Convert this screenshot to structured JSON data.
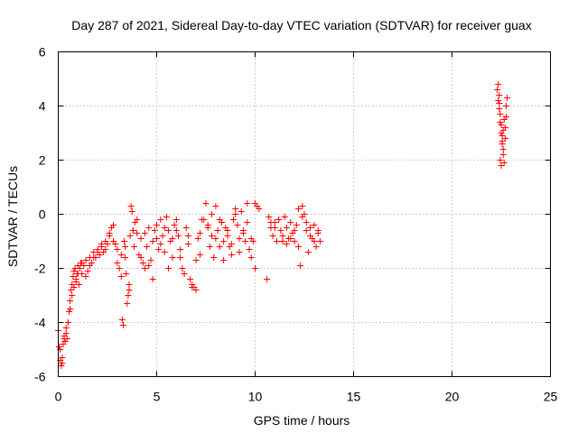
{
  "chart_data": {
    "type": "scatter",
    "title": "Day 287 of 2021, Sidereal Day-to-day VTEC variation (SDTVAR) for receiver guax",
    "xlabel": "GPS time / hours",
    "ylabel": "SDTVAR / TECUs",
    "xlim": [
      0,
      25
    ],
    "ylim": [
      -6,
      6
    ],
    "xticks": [
      0,
      5,
      10,
      15,
      20,
      25
    ],
    "yticks": [
      -6,
      -4,
      -2,
      0,
      2,
      4,
      6
    ],
    "grid": true,
    "marker": "+",
    "color": "#ff0000",
    "series": [
      {
        "name": "SDTVAR",
        "x": [
          0.0,
          0.05,
          0.1,
          0.15,
          0.2,
          0.25,
          0.3,
          0.35,
          0.4,
          0.45,
          0.5,
          0.55,
          0.6,
          0.65,
          0.7,
          0.75,
          0.8,
          0.85,
          0.9,
          0.95,
          1.0,
          1.05,
          1.1,
          1.15,
          1.2,
          1.3,
          1.4,
          1.5,
          1.6,
          1.7,
          1.8,
          1.9,
          2.0,
          2.1,
          2.2,
          2.3,
          2.4,
          2.5,
          2.6,
          2.7,
          2.8,
          2.9,
          3.0,
          3.1,
          3.2,
          3.25,
          3.3,
          3.35,
          3.4,
          3.45,
          3.5,
          3.55,
          3.6,
          3.65,
          3.7,
          3.75,
          3.8,
          3.85,
          3.9,
          4.0,
          4.1,
          4.2,
          4.3,
          4.4,
          4.5,
          4.6,
          4.7,
          4.8,
          4.9,
          5.0,
          5.1,
          5.2,
          5.3,
          5.4,
          5.5,
          5.6,
          5.7,
          5.8,
          5.9,
          6.0,
          6.1,
          6.2,
          6.3,
          6.4,
          6.5,
          6.6,
          6.7,
          6.8,
          6.9,
          7.0,
          7.1,
          7.2,
          7.3,
          7.5,
          7.6,
          7.7,
          7.8,
          7.9,
          8.0,
          8.1,
          8.2,
          8.3,
          8.4,
          8.5,
          8.6,
          8.7,
          8.8,
          8.9,
          9.0,
          9.1,
          9.2,
          9.3,
          9.4,
          9.5,
          9.6,
          9.7,
          9.8,
          9.9,
          10.0,
          10.1,
          10.2,
          10.6,
          10.7,
          10.8,
          10.9,
          11.0,
          11.1,
          11.2,
          11.3,
          11.4,
          11.5,
          11.6,
          11.7,
          11.8,
          11.9,
          12.0,
          12.1,
          12.2,
          12.3,
          12.4,
          12.5,
          12.6,
          12.7,
          12.8,
          12.9,
          13.0,
          13.1,
          13.2,
          13.3,
          0.1,
          0.2,
          0.3,
          0.4,
          0.5,
          0.6,
          0.7,
          0.8,
          0.9,
          1.0,
          1.1,
          1.2,
          1.4,
          1.6,
          1.8,
          2.0,
          2.2,
          2.4,
          2.6,
          2.8,
          3.0,
          3.2,
          3.4,
          3.6,
          3.8,
          4.0,
          4.2,
          4.4,
          4.6,
          4.8,
          5.0,
          5.2,
          5.4,
          5.6,
          5.8,
          6.0,
          6.2,
          6.4,
          6.6,
          6.8,
          7.0,
          7.2,
          7.4,
          7.6,
          7.8,
          8.0,
          8.2,
          8.4,
          8.6,
          8.8,
          9.0,
          9.2,
          9.4,
          9.6,
          9.8,
          10.0,
          10.8,
          11.0,
          11.2,
          11.4,
          11.6,
          11.8,
          12.0,
          12.2,
          12.4,
          12.6,
          12.8,
          13.0,
          13.2,
          22.3,
          22.35,
          22.4,
          22.45,
          22.5,
          22.55,
          22.6,
          22.65,
          22.7,
          22.75,
          22.8,
          22.35,
          22.4,
          22.45,
          22.5,
          22.55,
          22.6,
          22.65,
          22.7,
          22.75,
          22.4,
          22.45,
          22.5,
          22.55,
          22.6
        ],
        "y": [
          -4.3,
          -4.9,
          -5.4,
          -5.6,
          -5.3,
          -4.8,
          -4.5,
          -4.7,
          -4.2,
          -4.6,
          -4.0,
          -3.6,
          -3.2,
          -2.8,
          -2.6,
          -2.3,
          -2.1,
          -2.0,
          -2.4,
          -2.2,
          -1.9,
          -2.6,
          -2.0,
          -1.8,
          -2.2,
          -1.9,
          -1.7,
          -2.1,
          -1.6,
          -1.8,
          -1.4,
          -1.6,
          -1.3,
          -1.5,
          -1.2,
          -1.4,
          -1.0,
          -1.1,
          -0.8,
          -0.5,
          -0.4,
          -1.1,
          -1.3,
          -2.0,
          -1.5,
          -3.9,
          -4.1,
          -1.0,
          -1.6,
          -2.2,
          -3.3,
          -3.0,
          -2.6,
          -0.8,
          0.3,
          0.1,
          -0.6,
          -1.2,
          -0.3,
          -0.7,
          -1.5,
          -0.9,
          -1.8,
          -2.0,
          -1.2,
          -0.5,
          -1.7,
          -2.4,
          -0.6,
          -0.9,
          -1.3,
          -0.2,
          -0.8,
          -1.4,
          -0.1,
          -0.6,
          -1.0,
          -1.6,
          -0.4,
          -0.2,
          -0.8,
          -1.3,
          -2.0,
          -2.2,
          -0.5,
          -1.1,
          -2.4,
          -2.6,
          -2.7,
          -2.8,
          -0.9,
          -1.5,
          -0.2,
          0.4,
          -0.4,
          -1.2,
          -0.8,
          -1.6,
          0.3,
          -0.6,
          -1.2,
          -0.3,
          -1.0,
          -0.5,
          -0.8,
          -1.2,
          -1.5,
          -0.2,
          0.2,
          -0.4,
          -0.9,
          0.1,
          -0.6,
          -1.0,
          0.4,
          -1.3,
          -1.6,
          -1.0,
          -2.0,
          0.3,
          0.2,
          -2.4,
          -0.1,
          -0.5,
          -0.8,
          -0.3,
          -1.0,
          -0.2,
          -0.6,
          -1.0,
          -0.1,
          -0.5,
          -0.9,
          -0.3,
          -0.7,
          -1.0,
          -0.4,
          -1.2,
          -1.9,
          0.3,
          0.0,
          -0.6,
          -1.4,
          -0.5,
          -0.9,
          -0.4,
          -1.2,
          -0.7,
          -1.0,
          -5.0,
          -5.5,
          -4.6,
          -4.4,
          -4.0,
          -3.5,
          -3.0,
          -2.7,
          -2.5,
          -2.2,
          -2.0,
          -1.8,
          -2.3,
          -1.9,
          -1.6,
          -1.4,
          -1.1,
          -1.3,
          -0.7,
          -1.0,
          -1.8,
          -2.3,
          -1.2,
          -2.8,
          -0.6,
          -0.2,
          -1.6,
          -0.7,
          -1.9,
          -1.0,
          -0.4,
          -1.1,
          -0.5,
          -2.0,
          -0.9,
          -0.6,
          -1.6,
          -2.2,
          -0.8,
          -2.7,
          -1.7,
          -0.7,
          -0.2,
          -0.5,
          0.0,
          -0.9,
          -0.2,
          -1.7,
          -0.6,
          -1.1,
          0.0,
          -1.4,
          -0.7,
          -0.3,
          -0.9,
          0.4,
          -0.3,
          -0.5,
          -0.2,
          -0.8,
          -1.1,
          -0.9,
          -0.6,
          0.2,
          -0.1,
          -0.3,
          -0.8,
          -1.0,
          -0.6,
          4.6,
          4.2,
          3.9,
          3.4,
          3.0,
          2.6,
          2.2,
          1.9,
          3.2,
          3.6,
          4.3,
          4.8,
          4.1,
          3.7,
          3.3,
          2.9,
          2.4,
          3.5,
          2.8,
          4.0,
          4.4,
          2.0,
          1.8,
          2.7,
          3.1
        ]
      }
    ]
  }
}
